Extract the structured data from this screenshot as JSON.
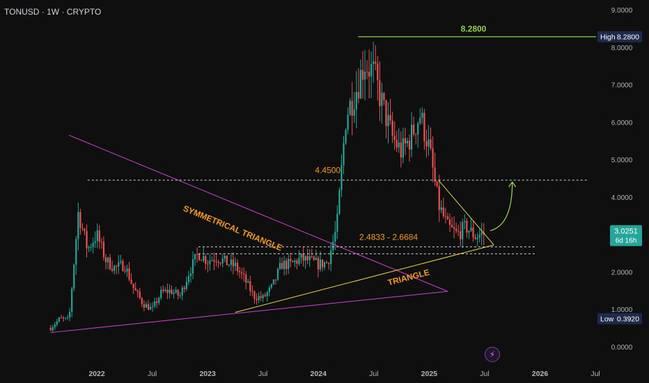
{
  "header": {
    "symbol": "TONUSD · 1W · CRYPTO"
  },
  "price_badge": {
    "price": "3.0251",
    "countdown": "6d 16h"
  },
  "stats": {
    "high_label": "High",
    "high_value": "8.2800",
    "low_label": "Low",
    "low_value": "0.3920"
  },
  "annotations": {
    "high_level": "8.2800",
    "resistance": "4.4500",
    "support_zone": "2.4833 - 2.6684",
    "sym_triangle": "SYMMETRICAL TRIANGLE",
    "triangle": "TRIANGLE"
  },
  "colors": {
    "background": "#0f0f0f",
    "bull": "#26a69a",
    "bear": "#ef5350",
    "high_line": "#8fd14f",
    "sym_triangle": "#d63fd6",
    "triangle": "#e6d84a",
    "annotation_text": "#f59a23",
    "price_badge": "#26a69a",
    "axis_text": "#b2b5be"
  },
  "chart_data": {
    "type": "candlestick",
    "interval": "1W",
    "ylim": [
      0,
      9
    ],
    "yticks": [
      "9.0000",
      "8.0000",
      "7.0000",
      "6.0000",
      "5.0000",
      "4.0000",
      "2.0000",
      "1.0000",
      "0.0000"
    ],
    "xticks": [
      {
        "label": "2022",
        "date": "2022-01"
      },
      {
        "label": "Jul",
        "date": "2022-07"
      },
      {
        "label": "2023",
        "date": "2023-01"
      },
      {
        "label": "Jul",
        "date": "2023-07"
      },
      {
        "label": "2024",
        "date": "2024-01"
      },
      {
        "label": "Jul",
        "date": "2024-07"
      },
      {
        "label": "2025",
        "date": "2025-01"
      },
      {
        "label": "Jul",
        "date": "2025-07"
      },
      {
        "label": "2026",
        "date": "2026-01"
      },
      {
        "label": "Jul",
        "date": "2026-07"
      }
    ],
    "levels": [
      {
        "name": "high",
        "value": 8.28,
        "style": "solid"
      },
      {
        "name": "resistance",
        "value": 4.45,
        "style": "dashed"
      },
      {
        "name": "support-top",
        "value": 2.6684,
        "style": "dashed"
      },
      {
        "name": "support-bottom",
        "value": 2.4833,
        "style": "dashed"
      }
    ],
    "trend_lines": [
      {
        "name": "sym-upper",
        "from": [
          "2021-10",
          5.65
        ],
        "to": [
          "2025-03",
          1.48
        ]
      },
      {
        "name": "sym-lower",
        "from": [
          "2021-08",
          0.38
        ],
        "to": [
          "2025-03",
          1.48
        ]
      },
      {
        "name": "triangle-lower",
        "from": [
          "2023-04",
          0.92
        ],
        "to": [
          "2025-08",
          2.72
        ]
      },
      {
        "name": "triangle-upper",
        "from": [
          "2025-02",
          4.45
        ],
        "to": [
          "2025-08",
          2.72
        ]
      }
    ],
    "projection": {
      "from": [
        "2025-07",
        3.1
      ],
      "to": [
        "2025-10",
        4.4
      ]
    },
    "path": [
      [
        "2021-08",
        0.5
      ],
      [
        "2021-09",
        0.75
      ],
      [
        "2021-10",
        0.72
      ],
      [
        "2021-11",
        3.6
      ],
      [
        "2021-12",
        2.6
      ],
      [
        "2022-01",
        3.0
      ],
      [
        "2022-02",
        2.3
      ],
      [
        "2022-03",
        2.1
      ],
      [
        "2022-04",
        2.2
      ],
      [
        "2022-05",
        1.55
      ],
      [
        "2022-06",
        1.15
      ],
      [
        "2022-07",
        1.0
      ],
      [
        "2022-08",
        1.45
      ],
      [
        "2022-09",
        1.5
      ],
      [
        "2022-10",
        1.35
      ],
      [
        "2022-11",
        2.0
      ],
      [
        "2022-12",
        2.5
      ],
      [
        "2023-01",
        2.3
      ],
      [
        "2023-02",
        2.4
      ],
      [
        "2023-03",
        2.25
      ],
      [
        "2023-04",
        2.15
      ],
      [
        "2023-05",
        1.8
      ],
      [
        "2023-06",
        1.35
      ],
      [
        "2023-07",
        1.3
      ],
      [
        "2023-08",
        1.6
      ],
      [
        "2023-09",
        2.2
      ],
      [
        "2023-10",
        2.2
      ],
      [
        "2023-11",
        2.35
      ],
      [
        "2023-12",
        2.3
      ],
      [
        "2024-01",
        2.2
      ],
      [
        "2024-02",
        2.25
      ],
      [
        "2024-03",
        3.2
      ],
      [
        "2024-04",
        6.2
      ],
      [
        "2024-05",
        6.8
      ],
      [
        "2024-06",
        7.6
      ],
      [
        "2024-07",
        7.3
      ],
      [
        "2024-08",
        6.4
      ],
      [
        "2024-09",
        5.6
      ],
      [
        "2024-10",
        5.2
      ],
      [
        "2024-11",
        5.6
      ],
      [
        "2024-12",
        6.2
      ],
      [
        "2025-01",
        5.3
      ],
      [
        "2025-02",
        3.8
      ],
      [
        "2025-03",
        3.2
      ],
      [
        "2025-04",
        3.0
      ],
      [
        "2025-05",
        3.2
      ],
      [
        "2025-06",
        2.95
      ],
      [
        "2025-07",
        3.03
      ]
    ]
  }
}
